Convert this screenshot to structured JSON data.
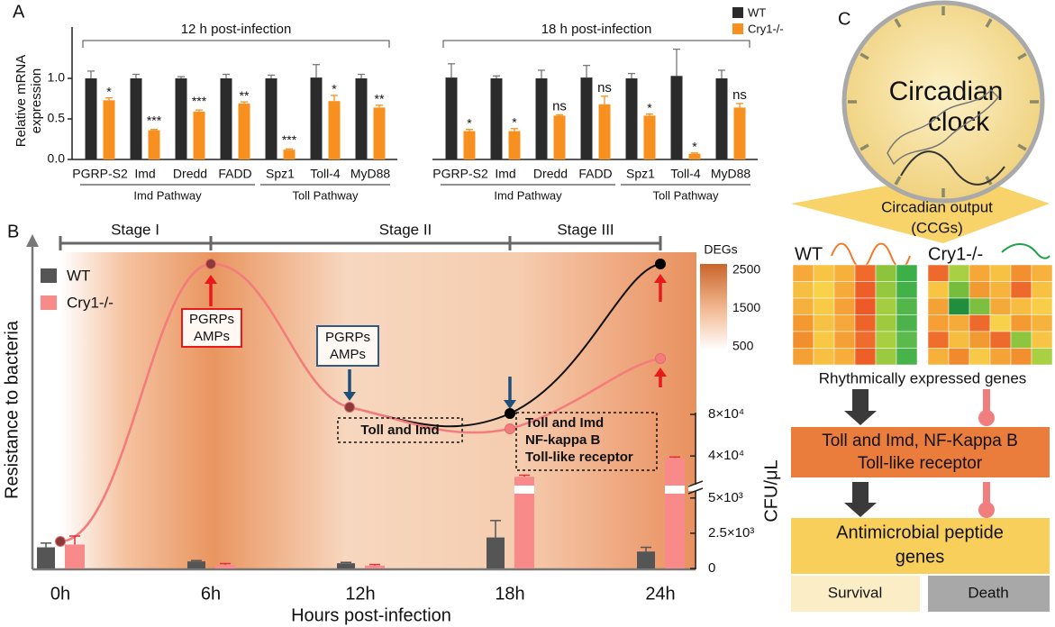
{
  "panels": [
    "A",
    "B",
    "C"
  ],
  "chart_data": [
    {
      "type": "bar",
      "title": "12 h post-infection",
      "ylabel": [
        "Relative mRNA",
        "expression"
      ],
      "categories": [
        "PGRP-S2",
        "Imd",
        "Dredd",
        "FADD",
        "Spz1",
        "Toll-4",
        "MyD88"
      ],
      "pathways": [
        "Imd Pathway",
        "Toll Pathway"
      ],
      "ylim": [
        0,
        1.5
      ],
      "yticks": [
        {
          "value": 0,
          "label": "0.0"
        },
        {
          "value": 0.5,
          "label": "0.5"
        },
        {
          "value": 1,
          "label": "1.0"
        }
      ],
      "series": [
        {
          "name": "WT",
          "color": "#2b2b2b",
          "values": [
            1.0,
            1.0,
            1.0,
            1.0,
            1.0,
            1.01,
            1.0
          ],
          "errors": [
            0.09,
            0.05,
            0.02,
            0.05,
            0.04,
            0.16,
            0.05
          ]
        },
        {
          "name": "Cry1-/-",
          "color": "#f7901e",
          "values": [
            0.73,
            0.36,
            0.59,
            0.69,
            0.12,
            0.72,
            0.64
          ],
          "errors": [
            0.03,
            0.01,
            0.02,
            0.02,
            0.01,
            0.07,
            0.03
          ]
        }
      ],
      "annotations": [
        "*",
        "***",
        "***",
        "**",
        "***",
        "*",
        "**"
      ]
    },
    {
      "type": "bar",
      "title": "18 h post-infection",
      "categories": [
        "PGRP-S2",
        "Imd",
        "Dredd",
        "FADD",
        "Spz1",
        "Toll-4",
        "MyD88"
      ],
      "pathways": [
        "Imd Pathway",
        "Toll Pathway"
      ],
      "series": [
        {
          "color": "#2b2b2b",
          "values": [
            1.01,
            1.0,
            1.0,
            1.01,
            1.0,
            1.03,
            1.0
          ],
          "errors": [
            0.17,
            0.03,
            0.1,
            0.15,
            0.06,
            0.33,
            0.1
          ]
        },
        {
          "color": "#f7901e",
          "values": [
            0.35,
            0.35,
            0.54,
            0.68,
            0.54,
            0.07,
            0.64
          ],
          "errors": [
            0.02,
            0.03,
            0.01,
            0.1,
            0.02,
            0.01,
            0.05
          ]
        }
      ],
      "annotations": [
        "*",
        "*",
        "ns",
        "ns",
        "*",
        "*",
        "ns"
      ]
    },
    {
      "type": "bar",
      "xlabel": "Hours post-infection",
      "ylabel": "Resistance to bacteria",
      "y2label": "CFU/μL",
      "categories": [
        "0h",
        "6h",
        "12h",
        "18h",
        "24h"
      ],
      "y2lim": [
        0,
        80000
      ],
      "y2break": [
        5500,
        15000
      ],
      "y2ticks": [
        0,
        {
          "value": 2500,
          "label": "2.5×10³"
        },
        {
          "value": 5000,
          "label": "5×10³"
        },
        {
          "value": 40000,
          "label": "4×10⁴"
        },
        {
          "value": 80000,
          "label": "8×10⁴"
        }
      ],
      "series": [
        {
          "name": "WT",
          "color": "#555555",
          "axis": "y2",
          "values": [
            1500,
            500,
            370,
            2200,
            1200
          ],
          "errors": [
            300,
            60,
            60,
            1200,
            300
          ]
        },
        {
          "name": "Cry1-/-",
          "color": "#f98a8a",
          "axis": "y2",
          "values": [
            1700,
            250,
            200,
            20000,
            38000
          ],
          "errors": [
            600,
            100,
            80,
            1500,
            1000
          ]
        }
      ]
    }
  ],
  "panel_b": {
    "stages": [
      "Stage I",
      "Stage II",
      "Stage III"
    ],
    "colorbar": {
      "title": "DEGs",
      "lim": [
        500,
        2500
      ],
      "ticks": [
        2500,
        1500,
        500
      ]
    },
    "callouts": [
      [
        "PGRPs",
        "AMPs"
      ],
      [
        "PGRPs",
        "AMPs"
      ],
      [
        "Toll and Imd"
      ],
      [
        "Toll and Imd",
        "NF-kappa B",
        "Toll-like receptor"
      ]
    ]
  },
  "panel_c": {
    "clock": [
      "Circadian",
      "clock"
    ],
    "output": [
      "Circadian output",
      "(CCGs)"
    ],
    "heatmaps": [
      "WT",
      "Cry1-/-"
    ],
    "rhythmic": "Rhythmically expressed genes",
    "pathway": [
      "Toll and Imd, NF-Kappa B",
      "Toll-like receptor"
    ],
    "amp": [
      "Antimicrobial peptide",
      "genes"
    ],
    "outcomes": [
      "Survival",
      "Death"
    ]
  }
}
